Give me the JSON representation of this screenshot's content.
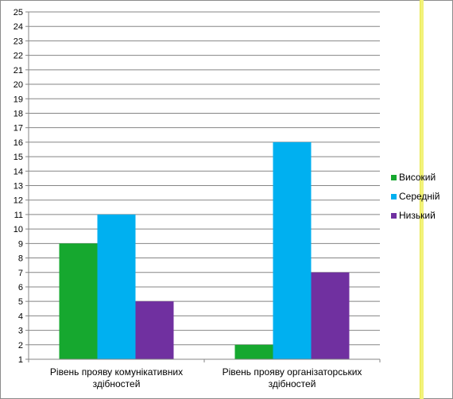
{
  "chart_data": {
    "type": "bar",
    "categories": [
      [
        "Рівень прояву комунікативних",
        "здібностей"
      ],
      [
        "Рівень прояву організаторських",
        "здібностей"
      ]
    ],
    "series": [
      {
        "name": "Високий",
        "color": "#16a82f",
        "values": [
          9,
          2
        ]
      },
      {
        "name": "Середній",
        "color": "#00b0f0",
        "values": [
          11,
          16
        ]
      },
      {
        "name": "Низький",
        "color": "#7030a0",
        "values": [
          5,
          7
        ]
      }
    ],
    "ylim": [
      1,
      25
    ],
    "ytick_step": 1,
    "grid": true,
    "legend_position": "right",
    "title": "",
    "xlabel": "",
    "ylabel": ""
  }
}
